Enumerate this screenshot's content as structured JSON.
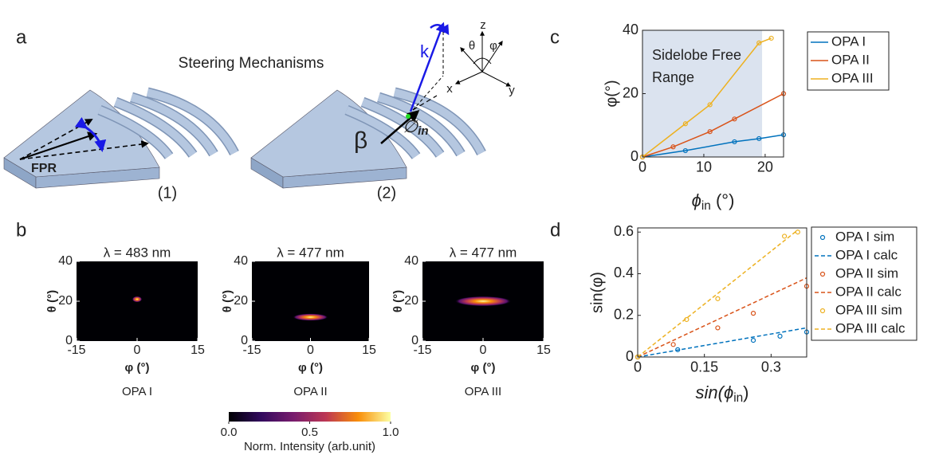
{
  "panel_labels": [
    "a",
    "b",
    "c",
    "d"
  ],
  "diagram": {
    "title": "Steering Mechanisms",
    "fpr": "FPR",
    "captions": [
      "(1)",
      "(2)"
    ],
    "k": "k",
    "beta": "β",
    "phi_in": {
      "symbol": "∅",
      "sub": "in"
    },
    "axes": {
      "z": "z",
      "x": "x",
      "y": "y",
      "theta": "θ",
      "phi": "φ"
    }
  },
  "chart_data": [
    {
      "type": "heatmap",
      "title": "λ = 483 nm",
      "xlabel": "φ (°)",
      "ylabel": "θ (°)",
      "caption": "OPA I",
      "xlim": [
        -15,
        15
      ],
      "xticks": [
        -15,
        0,
        15
      ],
      "ylim": [
        0,
        40
      ],
      "yticks": [
        0,
        20,
        40
      ],
      "peak_x": 0,
      "peak_y": 21,
      "width_x": 1.2,
      "width_y": 1.5
    },
    {
      "type": "heatmap",
      "title": "λ = 477 nm",
      "xlabel": "φ (°)",
      "ylabel": "θ (°)",
      "caption": "OPA II",
      "xlim": [
        -15,
        15
      ],
      "xticks": [
        -15,
        0,
        15
      ],
      "ylim": [
        0,
        40
      ],
      "yticks": [
        0,
        20,
        40
      ],
      "peak_x": 0,
      "peak_y": 12,
      "width_x": 4.5,
      "width_y": 1.8
    },
    {
      "type": "heatmap",
      "title": "λ = 477 nm",
      "xlabel": "φ (°)",
      "ylabel": "θ (°)",
      "caption": "OPA III",
      "xlim": [
        -15,
        15
      ],
      "xticks": [
        -15,
        0,
        15
      ],
      "ylim": [
        0,
        40
      ],
      "yticks": [
        0,
        20,
        40
      ],
      "peak_x": 0,
      "peak_y": 20,
      "width_x": 7,
      "width_y": 2.5
    },
    {
      "type": "colorbar",
      "label": "Norm. Intensity (arb.unit)",
      "xlim": [
        0,
        1
      ],
      "xticks": [
        {
          "value": 0,
          "label": "0.0"
        },
        0.5,
        {
          "value": 1,
          "label": "1.0"
        }
      ]
    },
    {
      "type": "line",
      "xlabel": [
        "ϕ",
        "in",
        " (°)"
      ],
      "ylabel": "φ(°)",
      "xlim": [
        0,
        23
      ],
      "xticks": [
        0,
        10,
        20
      ],
      "ylim": [
        0,
        40
      ],
      "yticks": [
        0,
        20,
        40
      ],
      "shade_x": [
        0,
        19.5
      ],
      "annotation": [
        "Sidelobe Free",
        "Range"
      ],
      "markers": true,
      "series": [
        {
          "name": "OPA I",
          "color": "#0072bd",
          "x": [
            0,
            7,
            15,
            19,
            23
          ],
          "values": [
            0,
            2,
            4.8,
            5.8,
            7
          ]
        },
        {
          "name": "OPA II",
          "color": "#d95319",
          "x": [
            0,
            5,
            11,
            15,
            23
          ],
          "values": [
            0,
            3.2,
            8,
            12,
            20
          ]
        },
        {
          "name": "OPA III",
          "color": "#edb120",
          "x": [
            0,
            7,
            11,
            19,
            21
          ],
          "values": [
            0,
            10.5,
            16.5,
            36,
            37.5
          ]
        }
      ]
    },
    {
      "type": "scatter",
      "xlabel": [
        "sin(ϕ",
        "in",
        ")"
      ],
      "ylabel": "sin(φ)",
      "xlim": [
        0,
        0.38
      ],
      "xticks": [
        0,
        0.15,
        0.3
      ],
      "ylim": [
        0,
        0.62
      ],
      "yticks": [
        0,
        0.2,
        0.4,
        0.6
      ],
      "series": [
        {
          "name": "OPA I sim",
          "color": "#0072bd",
          "style": "markers",
          "x": [
            0,
            0.09,
            0.26,
            0.32,
            0.38
          ],
          "values": [
            0,
            0.035,
            0.08,
            0.1,
            0.12
          ]
        },
        {
          "name": "OPA I calc",
          "color": "#0072bd",
          "style": "dashed",
          "x": [
            0,
            0.38
          ],
          "values": [
            0,
            0.14
          ]
        },
        {
          "name": "OPA II sim",
          "color": "#d95319",
          "style": "markers",
          "x": [
            0,
            0.08,
            0.18,
            0.26,
            0.38
          ],
          "values": [
            0,
            0.06,
            0.14,
            0.21,
            0.34
          ]
        },
        {
          "name": "OPA II calc",
          "color": "#d95319",
          "style": "dashed",
          "x": [
            0,
            0.38
          ],
          "values": [
            0,
            0.38
          ]
        },
        {
          "name": "OPA III sim",
          "color": "#edb120",
          "style": "markers",
          "x": [
            0,
            0.11,
            0.18,
            0.33,
            0.36
          ],
          "values": [
            0,
            0.18,
            0.28,
            0.58,
            0.6
          ]
        },
        {
          "name": "OPA III calc",
          "color": "#edb120",
          "style": "dashed",
          "x": [
            0,
            0.36
          ],
          "values": [
            0,
            0.61
          ]
        }
      ]
    }
  ]
}
